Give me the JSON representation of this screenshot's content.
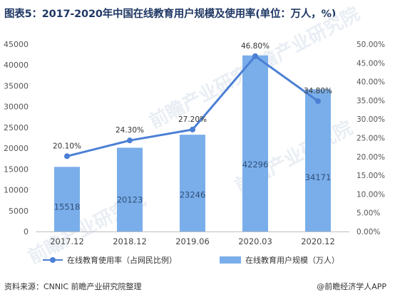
{
  "title": "图表5：2017-2020年中国在线教育用户规模及使用率(单位：万人，%)",
  "chart_data": {
    "type": "bar",
    "categories": [
      "2017.12",
      "2018.12",
      "2019.06",
      "2020.03",
      "2020.12"
    ],
    "series": [
      {
        "name": "在线教育用户规模（万人）",
        "type": "bar",
        "axis": "left",
        "values": [
          15518,
          20123,
          23246,
          42296,
          34171
        ],
        "color": "#7aaeea"
      },
      {
        "name": "在线教育使用率（占网民比例）",
        "type": "line",
        "axis": "right",
        "values": [
          20.1,
          24.3,
          27.2,
          46.8,
          34.8
        ],
        "color": "#4a7fd4"
      }
    ],
    "bar_labels": [
      "15518",
      "20123",
      "23246",
      "42296",
      "34171"
    ],
    "line_labels": [
      "20.10%",
      "24.30%",
      "27.20%",
      "46.80%",
      "34.80%"
    ],
    "ylim_left": [
      0,
      45000
    ],
    "yticks_left": [
      "0",
      "5000",
      "10000",
      "15000",
      "20000",
      "25000",
      "30000",
      "35000",
      "40000",
      "45000"
    ],
    "ylim_right": [
      0,
      50
    ],
    "yticks_right": [
      "0.00%",
      "5.00%",
      "10.00%",
      "15.00%",
      "20.00%",
      "25.00%",
      "30.00%",
      "35.00%",
      "40.00%",
      "45.00%",
      "50.00%"
    ],
    "grid": false,
    "legend_position": "bottom"
  },
  "legend": {
    "line_label": "在线教育使用率（占网民比例）",
    "bar_label": "在线教育用户规模（万人）"
  },
  "footer": {
    "source": "资料来源：CNNIC 前瞻产业研究院整理",
    "brand": "@前瞻经济学人APP"
  },
  "watermark": "前瞻产业研究院"
}
